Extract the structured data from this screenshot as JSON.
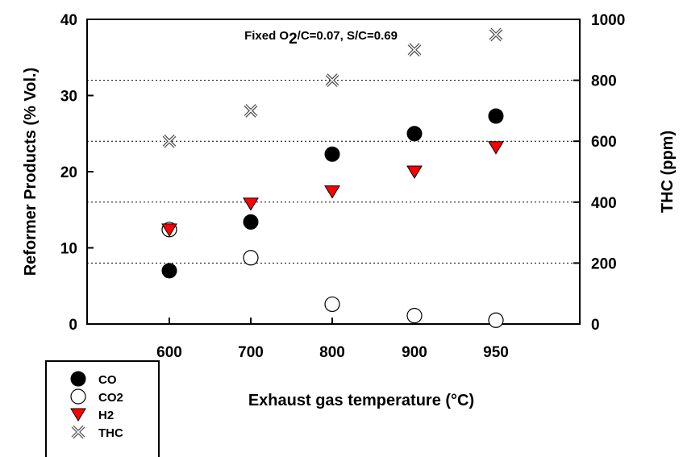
{
  "chart_data": {
    "type": "scatter",
    "categories": [
      "600",
      "700",
      "800",
      "900",
      "950"
    ],
    "xlabel": "Exhaust gas temperature (°C)",
    "ylabel": "Reformer Products (% Vol.)",
    "y2label": "THC (ppm)",
    "ylim": [
      0,
      40
    ],
    "y2lim": [
      0,
      1000
    ],
    "yticks": [
      "0",
      "10",
      "20",
      "30",
      "40"
    ],
    "y2ticks": [
      "0",
      "200",
      "400",
      "600",
      "800",
      "1000"
    ],
    "grid": "horizontal dotted at right-axis 200, 400, 600, 800",
    "legend_position": "bottom-left",
    "annotation": {
      "prefix": "Fixed O",
      "subscript": "2",
      "suffix": "/C=0.07, S/C=0.69"
    },
    "series": [
      {
        "name": "CO",
        "axis": "left",
        "marker": "filled-circle",
        "color": "#000000",
        "values": [
          7.0,
          13.4,
          22.3,
          25.0,
          27.3
        ]
      },
      {
        "name": "CO2",
        "axis": "left",
        "marker": "open-circle",
        "color": "#000000",
        "values": [
          12.4,
          8.7,
          2.6,
          1.1,
          0.5
        ]
      },
      {
        "name": "H2",
        "axis": "left",
        "marker": "down-triangle",
        "color": "#ff0000",
        "values": [
          12.4,
          15.8,
          17.4,
          20.0,
          23.2
        ]
      },
      {
        "name": "THC",
        "axis": "right",
        "marker": "x-cross",
        "color": "#555555",
        "values": [
          600,
          700,
          800,
          900,
          950
        ]
      }
    ]
  }
}
